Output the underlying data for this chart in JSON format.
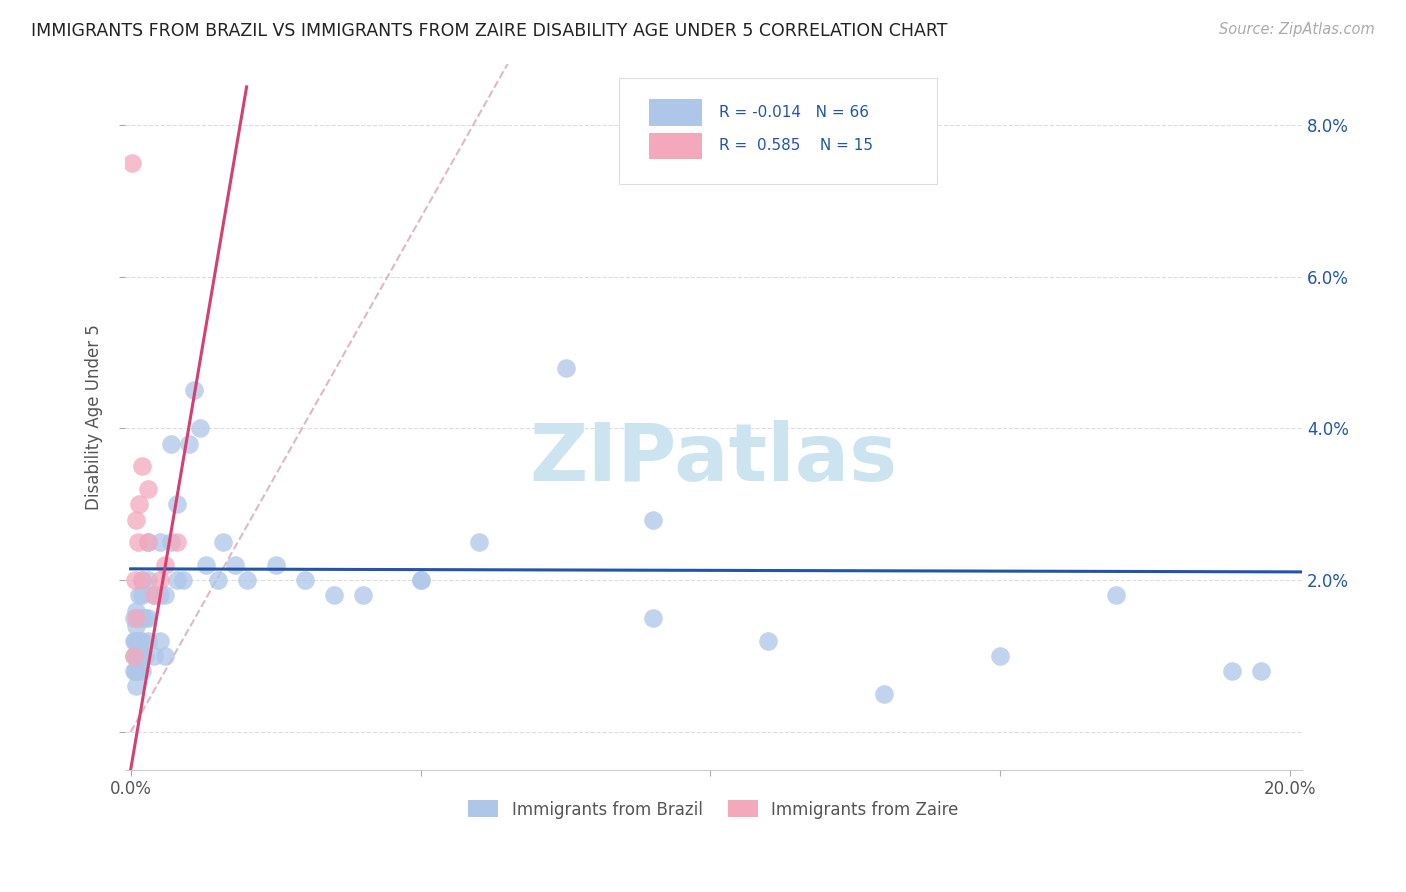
{
  "title": "IMMIGRANTS FROM BRAZIL VS IMMIGRANTS FROM ZAIRE DISABILITY AGE UNDER 5 CORRELATION CHART",
  "source": "Source: ZipAtlas.com",
  "ylabel": "Disability Age Under 5",
  "xlim": [
    -0.001,
    0.202
  ],
  "ylim": [
    -0.005,
    0.088
  ],
  "xticks": [
    0.0,
    0.05,
    0.1,
    0.15,
    0.2
  ],
  "yticks": [
    0.0,
    0.02,
    0.04,
    0.06,
    0.08
  ],
  "xticklabels": [
    "0.0%",
    "",
    "",
    "",
    "20.0%"
  ],
  "yticklabels_right": [
    "",
    "2.0%",
    "4.0%",
    "6.0%",
    "8.0%"
  ],
  "legend_brazil": "Immigrants from Brazil",
  "legend_zaire": "Immigrants from Zaire",
  "R_brazil": "-0.014",
  "N_brazil": "66",
  "R_zaire": "0.585",
  "N_zaire": "15",
  "color_brazil": "#aec6e8",
  "color_zaire": "#f4a8bc",
  "trendline_brazil_color": "#2255aa",
  "trendline_zaire_color": "#d44070",
  "diag_line_color": "#ddb0c0",
  "watermark_color": "#cce4f0",
  "background_color": "#ffffff",
  "grid_color": "#dddddd",
  "brazil_x": [
    0.0005,
    0.0005,
    0.0005,
    0.0005,
    0.0008,
    0.0008,
    0.001,
    0.001,
    0.001,
    0.001,
    0.001,
    0.001,
    0.0012,
    0.0012,
    0.0015,
    0.0015,
    0.0015,
    0.0015,
    0.002,
    0.002,
    0.002,
    0.002,
    0.002,
    0.002,
    0.0025,
    0.0025,
    0.003,
    0.003,
    0.003,
    0.003,
    0.004,
    0.004,
    0.005,
    0.005,
    0.005,
    0.006,
    0.006,
    0.007,
    0.007,
    0.008,
    0.008,
    0.009,
    0.01,
    0.011,
    0.012,
    0.013,
    0.015,
    0.016,
    0.018,
    0.02,
    0.025,
    0.03,
    0.035,
    0.04,
    0.05,
    0.06,
    0.075,
    0.09,
    0.11,
    0.13,
    0.15,
    0.17,
    0.19,
    0.195,
    0.09,
    0.05
  ],
  "brazil_y": [
    0.008,
    0.01,
    0.012,
    0.015,
    0.008,
    0.012,
    0.006,
    0.008,
    0.01,
    0.012,
    0.014,
    0.016,
    0.01,
    0.015,
    0.008,
    0.01,
    0.012,
    0.018,
    0.008,
    0.01,
    0.012,
    0.015,
    0.018,
    0.02,
    0.01,
    0.015,
    0.012,
    0.015,
    0.02,
    0.025,
    0.01,
    0.018,
    0.012,
    0.018,
    0.025,
    0.01,
    0.018,
    0.025,
    0.038,
    0.02,
    0.03,
    0.02,
    0.038,
    0.045,
    0.04,
    0.022,
    0.02,
    0.025,
    0.022,
    0.02,
    0.022,
    0.02,
    0.018,
    0.018,
    0.02,
    0.025,
    0.048,
    0.015,
    0.012,
    0.005,
    0.01,
    0.018,
    0.008,
    0.008,
    0.028,
    0.02
  ],
  "zaire_x": [
    0.0003,
    0.0005,
    0.0008,
    0.001,
    0.001,
    0.0012,
    0.0015,
    0.002,
    0.002,
    0.003,
    0.003,
    0.004,
    0.005,
    0.006,
    0.008
  ],
  "zaire_y": [
    0.075,
    0.01,
    0.02,
    0.015,
    0.028,
    0.025,
    0.03,
    0.02,
    0.035,
    0.025,
    0.032,
    0.018,
    0.02,
    0.022,
    0.025
  ]
}
